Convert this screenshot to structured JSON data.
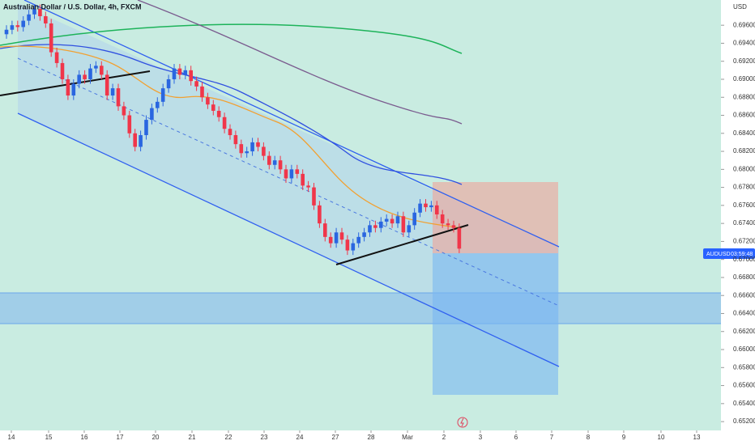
{
  "chart_data": {
    "type": "candlestick",
    "title": "Australian Dollar / U.S. Dollar, 4h, FXCM",
    "currency": "USD",
    "price_tag": {
      "symbol": "AUDUSD",
      "time": "03:59:48"
    },
    "up_color": "#2a66e0",
    "down_color": "#f0364a",
    "x": [
      0,
      1,
      2,
      3,
      4,
      5,
      6,
      7,
      8,
      9,
      10,
      11,
      12,
      13,
      14,
      15,
      16,
      17,
      18,
      19,
      20,
      21,
      22,
      23,
      24,
      25,
      26,
      27,
      28,
      29,
      30,
      31,
      32,
      33,
      34,
      35,
      36,
      37,
      38,
      39,
      40,
      41,
      42,
      43,
      44,
      45,
      46,
      47,
      48,
      49,
      50,
      51,
      52,
      53,
      54,
      55,
      56,
      57,
      58,
      59,
      60,
      61,
      62,
      63,
      64,
      65,
      66,
      67,
      68,
      69,
      70,
      71,
      72,
      73,
      74,
      75,
      76,
      77,
      78,
      79,
      80,
      81
    ],
    "open": [
      0.695,
      0.6955,
      0.696,
      0.6958,
      0.6965,
      0.6972,
      0.6978,
      0.697,
      0.6962,
      0.693,
      0.6918,
      0.69,
      0.6882,
      0.6895,
      0.6905,
      0.69,
      0.6912,
      0.6915,
      0.6905,
      0.6882,
      0.689,
      0.687,
      0.686,
      0.684,
      0.6825,
      0.6838,
      0.6855,
      0.6868,
      0.6875,
      0.689,
      0.69,
      0.6912,
      0.6905,
      0.691,
      0.6898,
      0.6892,
      0.688,
      0.6872,
      0.6865,
      0.6858,
      0.6845,
      0.6838,
      0.6828,
      0.6818,
      0.682,
      0.683,
      0.6825,
      0.6815,
      0.6805,
      0.681,
      0.68,
      0.679,
      0.68,
      0.6795,
      0.6782,
      0.678,
      0.676,
      0.674,
      0.6725,
      0.6718,
      0.673,
      0.6722,
      0.671,
      0.6718,
      0.6725,
      0.673,
      0.6738,
      0.6735,
      0.6742,
      0.6745,
      0.674,
      0.6748,
      0.673,
      0.6738,
      0.6752,
      0.6762,
      0.6758,
      0.676,
      0.675,
      0.674,
      0.6738,
      0.6735
    ],
    "high": [
      0.696,
      0.6965,
      0.6965,
      0.697,
      0.6977,
      0.6983,
      0.6983,
      0.6975,
      0.6967,
      0.6935,
      0.6923,
      0.6905,
      0.69,
      0.691,
      0.691,
      0.6917,
      0.692,
      0.692,
      0.691,
      0.6895,
      0.6895,
      0.6875,
      0.6865,
      0.6845,
      0.6843,
      0.686,
      0.6873,
      0.688,
      0.6895,
      0.6905,
      0.6917,
      0.6917,
      0.6915,
      0.6915,
      0.6903,
      0.6897,
      0.6885,
      0.6877,
      0.687,
      0.6863,
      0.685,
      0.6843,
      0.6833,
      0.6825,
      0.6835,
      0.6835,
      0.683,
      0.682,
      0.6815,
      0.6815,
      0.6805,
      0.6805,
      0.6805,
      0.68,
      0.6787,
      0.6785,
      0.6765,
      0.6745,
      0.673,
      0.6735,
      0.6735,
      0.6727,
      0.6723,
      0.673,
      0.6735,
      0.6743,
      0.6743,
      0.6747,
      0.675,
      0.675,
      0.6753,
      0.6753,
      0.6743,
      0.6757,
      0.6767,
      0.6767,
      0.6765,
      0.6765,
      0.6755,
      0.6745,
      0.6743,
      0.674
    ],
    "low": [
      0.6945,
      0.695,
      0.6953,
      0.6953,
      0.696,
      0.6967,
      0.6965,
      0.6957,
      0.6925,
      0.6913,
      0.6895,
      0.6877,
      0.6877,
      0.689,
      0.6895,
      0.6895,
      0.6907,
      0.69,
      0.6877,
      0.6877,
      0.6865,
      0.6855,
      0.6835,
      0.682,
      0.682,
      0.6833,
      0.685,
      0.6863,
      0.687,
      0.6885,
      0.6895,
      0.69,
      0.69,
      0.6893,
      0.6887,
      0.6875,
      0.6867,
      0.686,
      0.6853,
      0.684,
      0.6833,
      0.6823,
      0.6813,
      0.6813,
      0.6815,
      0.682,
      0.681,
      0.68,
      0.68,
      0.6795,
      0.6785,
      0.6785,
      0.679,
      0.6777,
      0.6775,
      0.6755,
      0.6735,
      0.672,
      0.6713,
      0.6713,
      0.6717,
      0.6705,
      0.6705,
      0.6713,
      0.672,
      0.6725,
      0.673,
      0.673,
      0.6737,
      0.6735,
      0.6735,
      0.6725,
      0.6725,
      0.6733,
      0.6747,
      0.6753,
      0.6753,
      0.6745,
      0.6735,
      0.6733,
      0.673,
      0.6707
    ],
    "close": [
      0.6955,
      0.696,
      0.6958,
      0.6965,
      0.6972,
      0.6978,
      0.697,
      0.6962,
      0.693,
      0.6918,
      0.69,
      0.6882,
      0.6895,
      0.6905,
      0.69,
      0.6912,
      0.6915,
      0.6905,
      0.6882,
      0.689,
      0.687,
      0.686,
      0.684,
      0.6825,
      0.6838,
      0.6855,
      0.6868,
      0.6875,
      0.689,
      0.69,
      0.6912,
      0.6905,
      0.691,
      0.6898,
      0.6892,
      0.688,
      0.6872,
      0.6865,
      0.6858,
      0.6845,
      0.6838,
      0.6828,
      0.6818,
      0.682,
      0.683,
      0.6825,
      0.6815,
      0.6805,
      0.681,
      0.68,
      0.679,
      0.68,
      0.6795,
      0.6782,
      0.678,
      0.676,
      0.674,
      0.6725,
      0.6718,
      0.673,
      0.6722,
      0.671,
      0.6718,
      0.6725,
      0.673,
      0.6738,
      0.6735,
      0.6742,
      0.6745,
      0.674,
      0.6748,
      0.673,
      0.6738,
      0.6752,
      0.6762,
      0.6758,
      0.676,
      0.675,
      0.674,
      0.6738,
      0.6735,
      0.6712
    ],
    "xlim": [
      -1.16,
      127.83
    ],
    "xticks": [
      {
        "value": 0.87,
        "label": "14"
      },
      {
        "value": 7.54,
        "label": "15"
      },
      {
        "value": 13.91,
        "label": "16"
      },
      {
        "value": 20.29,
        "label": "17"
      },
      {
        "value": 26.67,
        "label": "20"
      },
      {
        "value": 33.19,
        "label": "21"
      },
      {
        "value": 39.71,
        "label": "22"
      },
      {
        "value": 46.09,
        "label": "23"
      },
      {
        "value": 52.46,
        "label": "24"
      },
      {
        "value": 58.84,
        "label": "27"
      },
      {
        "value": 65.22,
        "label": "28"
      },
      {
        "value": 71.74,
        "label": "Mar"
      },
      {
        "value": 78.26,
        "label": "2"
      },
      {
        "value": 84.78,
        "label": "3"
      },
      {
        "value": 91.16,
        "label": "6"
      },
      {
        "value": 97.54,
        "label": "7"
      },
      {
        "value": 104.06,
        "label": "8"
      },
      {
        "value": 110.43,
        "label": "9"
      },
      {
        "value": 117.1,
        "label": "10"
      },
      {
        "value": 123.48,
        "label": "13"
      }
    ],
    "ylim": [
      0.6512,
      0.6988
    ],
    "yticks": [
      {
        "value": 0.696,
        "label": "0.69600"
      },
      {
        "value": 0.694,
        "label": "0.69400"
      },
      {
        "value": 0.692,
        "label": "0.69200"
      },
      {
        "value": 0.69,
        "label": "0.69000"
      },
      {
        "value": 0.688,
        "label": "0.68800"
      },
      {
        "value": 0.686,
        "label": "0.68600"
      },
      {
        "value": 0.684,
        "label": "0.68400"
      },
      {
        "value": 0.682,
        "label": "0.68200"
      },
      {
        "value": 0.68,
        "label": "0.68000"
      },
      {
        "value": 0.678,
        "label": "0.67800"
      },
      {
        "value": 0.676,
        "label": "0.67600"
      },
      {
        "value": 0.674,
        "label": "0.67400"
      },
      {
        "value": 0.672,
        "label": "0.67200"
      },
      {
        "value": 0.67,
        "label": "0.67000"
      },
      {
        "value": 0.668,
        "label": "0.66800"
      },
      {
        "value": 0.666,
        "label": "0.66600"
      },
      {
        "value": 0.664,
        "label": "0.66400"
      },
      {
        "value": 0.662,
        "label": "0.66200"
      },
      {
        "value": 0.66,
        "label": "0.66000"
      },
      {
        "value": 0.658,
        "label": "0.65800"
      },
      {
        "value": 0.656,
        "label": "0.65600"
      },
      {
        "value": 0.654,
        "label": "0.65400"
      },
      {
        "value": 0.652,
        "label": "0.65200"
      }
    ]
  }
}
